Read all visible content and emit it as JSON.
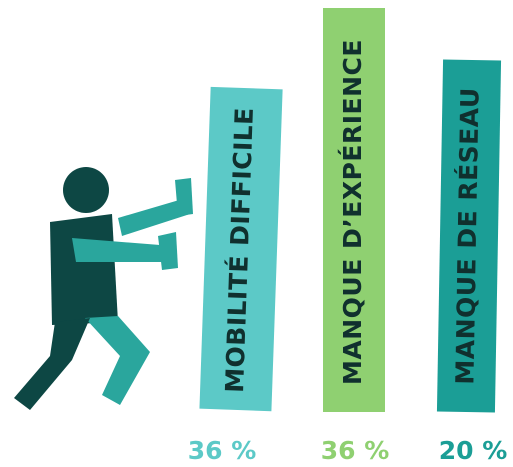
{
  "items": [
    {
      "label": "MOBILITÉ DIFFICILE",
      "percent": "36 %"
    },
    {
      "label": "MANQUE D’EXPÉRIENCE",
      "percent": "36 %"
    },
    {
      "label": "MANQUE DE RÉSEAU",
      "percent": "20 %"
    }
  ]
}
